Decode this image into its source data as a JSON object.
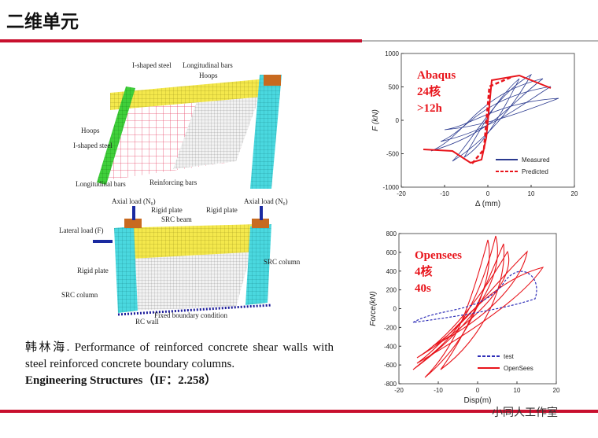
{
  "header": {
    "title": "二维单元"
  },
  "figure": {
    "labels": [
      "I-shaped steel",
      "Longitudinal bars",
      "Hoops",
      "Hoops",
      "I-shaped steel",
      "Longitudinal bars",
      "Reinforcing bars",
      "Axial load (N₀)",
      "Rigid plate",
      "Rigid plate",
      "Axial load (N₀)",
      "SRC beam",
      "Lateral load (F)",
      "Rigid plate",
      "SRC column",
      "SRC column",
      "RC wall",
      "Fixed boundary condition"
    ]
  },
  "charts": [
    {
      "xlim": [
        -20,
        20
      ],
      "xticks": [
        -20,
        -10,
        0,
        10,
        20
      ],
      "ylim": [
        -1000,
        1000
      ],
      "yticks": [
        -1000,
        -500,
        0,
        500,
        1000
      ],
      "xlabel": "Δ (mm)",
      "ylabel": "F (kN)",
      "annotation": [
        "Abaqus",
        "24核",
        ">12h"
      ],
      "legend": [
        {
          "name": "Measured",
          "color": "#2b3a8f"
        },
        {
          "name": "Predicted",
          "color": "#e8141b"
        }
      ]
    },
    {
      "xlim": [
        -20,
        20
      ],
      "xticks": [
        -20,
        -10,
        0,
        10,
        20
      ],
      "ylim": [
        -800,
        800
      ],
      "yticks": [
        -800,
        -600,
        -400,
        -200,
        0,
        200,
        400,
        600,
        800
      ],
      "xlabel": "Disp(m)",
      "ylabel": "Force(kN)",
      "annotation": [
        "Opensees",
        "4核",
        "40s"
      ],
      "legend": [
        {
          "name": "test",
          "color": "#2f2fb8"
        },
        {
          "name": "OpenSees",
          "color": "#e8141b"
        }
      ]
    }
  ],
  "citation": {
    "text": "韩林海. Performance of reinforced concrete shear walls with steel reinforced concrete boundary columns.",
    "journal": "Engineering Structures（IF：2.258）"
  },
  "watermark": "小同人工作室"
}
